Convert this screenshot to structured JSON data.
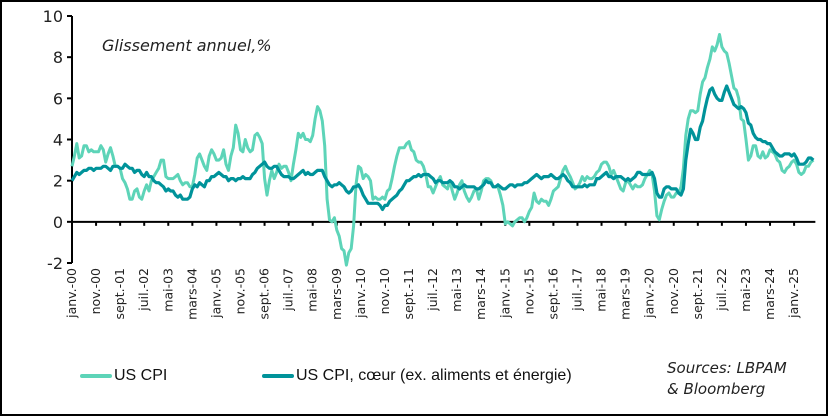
{
  "chart_data": {
    "type": "line",
    "subtitle": "Glissement annuel,%",
    "x_start": "janv.-00",
    "x_frequency": "monthly",
    "x_tick_labels": [
      "janv.-00",
      "nov.-00",
      "sept.-01",
      "juil.-02",
      "mai-03",
      "mars-04",
      "janv.-05",
      "nov.-05",
      "sept.-06",
      "juil.-07",
      "mai-08",
      "mars-09",
      "janv.-10",
      "nov.-10",
      "sept.-11",
      "juil.-12",
      "mai-13",
      "mars-14",
      "janv.-15",
      "nov.-15",
      "sept.-16",
      "juil.-17",
      "mai-18",
      "mars-19",
      "janv.-20",
      "nov.-20",
      "sept.-21",
      "juil.-22",
      "mai-23",
      "mars-24",
      "janv.-25"
    ],
    "y_ticks": [
      -2,
      0,
      2,
      4,
      6,
      8,
      10
    ],
    "ylim": [
      -2,
      10
    ],
    "grid": false,
    "legend_placement": "bottom",
    "series": [
      {
        "name": "US CPI",
        "color": "#5dd4b8",
        "values": [
          2.7,
          3.2,
          3.8,
          3.1,
          3.2,
          3.7,
          3.7,
          3.4,
          3.5,
          3.4,
          3.4,
          3.4,
          3.7,
          3.5,
          2.9,
          3.3,
          3.6,
          3.2,
          2.7,
          2.7,
          2.6,
          2.1,
          1.9,
          1.6,
          1.1,
          1.1,
          1.5,
          1.6,
          1.2,
          1.1,
          1.5,
          1.8,
          1.5,
          2.0,
          2.2,
          2.4,
          2.6,
          3.0,
          3.0,
          2.2,
          2.1,
          2.1,
          2.1,
          2.2,
          2.3,
          2.0,
          1.8,
          1.9,
          1.9,
          1.7,
          1.7,
          2.3,
          3.1,
          3.3,
          3.0,
          2.7,
          2.5,
          3.2,
          3.5,
          3.3,
          3.0,
          3.0,
          3.1,
          3.5,
          2.8,
          2.5,
          3.2,
          3.6,
          4.7,
          4.3,
          3.5,
          3.4,
          4.0,
          3.6,
          3.4,
          3.5,
          4.2,
          4.3,
          4.1,
          3.8,
          2.1,
          1.3,
          2.0,
          2.5,
          2.1,
          2.4,
          2.8,
          2.6,
          2.7,
          2.7,
          2.4,
          2.0,
          2.8,
          3.5,
          4.3,
          4.1,
          4.3,
          4.0,
          4.0,
          3.9,
          4.2,
          5.0,
          5.6,
          5.4,
          4.9,
          3.7,
          1.1,
          0.1,
          0.0,
          0.2,
          -0.4,
          -0.7,
          -1.3,
          -1.4,
          -2.1,
          -1.5,
          -1.3,
          -0.2,
          1.8,
          2.7,
          2.6,
          2.1,
          2.3,
          2.2,
          2.0,
          1.1,
          1.2,
          1.1,
          1.1,
          1.2,
          1.1,
          1.5,
          1.6,
          2.1,
          2.7,
          3.2,
          3.6,
          3.6,
          3.6,
          3.8,
          3.9,
          3.5,
          3.4,
          3.0,
          2.9,
          2.9,
          2.7,
          2.3,
          1.7,
          1.7,
          1.4,
          1.7,
          2.0,
          2.2,
          1.8,
          1.7,
          1.6,
          2.0,
          1.5,
          1.1,
          1.4,
          1.8,
          2.0,
          1.5,
          1.2,
          1.0,
          1.2,
          1.5,
          1.6,
          1.1,
          1.5,
          2.0,
          2.1,
          2.1,
          2.0,
          1.7,
          1.7,
          1.7,
          1.3,
          0.8,
          -0.1,
          0.0,
          -0.1,
          -0.2,
          0.0,
          0.1,
          0.2,
          0.2,
          0.0,
          0.2,
          0.5,
          0.7,
          1.4,
          1.0,
          0.9,
          1.1,
          1.0,
          1.0,
          0.8,
          1.1,
          1.5,
          1.6,
          1.7,
          2.1,
          2.5,
          2.7,
          2.4,
          2.2,
          1.9,
          1.6,
          1.7,
          1.9,
          2.2,
          2.0,
          2.2,
          2.1,
          2.1,
          2.2,
          2.4,
          2.5,
          2.8,
          2.9,
          2.9,
          2.7,
          2.3,
          2.5,
          2.2,
          1.9,
          1.6,
          1.5,
          1.9,
          2.0,
          1.8,
          1.6,
          1.8,
          1.7,
          1.7,
          1.8,
          2.1,
          2.3,
          2.5,
          2.3,
          1.5,
          0.3,
          0.1,
          0.6,
          1.0,
          1.3,
          1.4,
          1.2,
          1.2,
          1.4,
          1.4,
          1.7,
          2.6,
          4.2,
          5.0,
          5.4,
          5.4,
          5.3,
          5.4,
          6.2,
          6.8,
          7.0,
          7.5,
          7.9,
          8.5,
          8.3,
          8.6,
          9.1,
          8.5,
          8.3,
          8.2,
          7.7,
          7.1,
          6.5,
          6.4,
          6.0,
          5.0,
          4.9,
          4.0,
          3.0,
          3.2,
          3.7,
          3.7,
          3.2,
          3.1,
          3.4,
          3.1,
          3.2,
          3.5,
          3.4,
          3.3,
          3.0,
          2.9,
          2.5,
          2.4,
          2.6,
          2.7,
          2.9,
          3.0,
          2.8,
          2.4,
          2.3,
          2.4,
          2.7,
          2.7,
          2.9,
          3.0
        ]
      },
      {
        "name": "US CPI, cœur (ex. aliments et énergie)",
        "color": "#00939a",
        "values": [
          2.0,
          2.2,
          2.4,
          2.3,
          2.4,
          2.5,
          2.5,
          2.6,
          2.6,
          2.5,
          2.6,
          2.6,
          2.6,
          2.7,
          2.7,
          2.6,
          2.5,
          2.7,
          2.7,
          2.7,
          2.6,
          2.6,
          2.8,
          2.7,
          2.6,
          2.6,
          2.4,
          2.5,
          2.5,
          2.3,
          2.2,
          2.4,
          2.2,
          2.2,
          2.0,
          1.9,
          1.9,
          1.8,
          1.7,
          1.5,
          1.6,
          1.5,
          1.5,
          1.3,
          1.2,
          1.3,
          1.1,
          1.1,
          1.1,
          1.2,
          1.6,
          1.8,
          1.7,
          1.9,
          1.8,
          1.7,
          2.0,
          2.0,
          2.2,
          2.2,
          2.3,
          2.4,
          2.3,
          2.2,
          2.2,
          2.0,
          2.1,
          2.1,
          2.0,
          2.1,
          2.1,
          2.2,
          2.1,
          2.1,
          2.1,
          2.3,
          2.4,
          2.6,
          2.7,
          2.8,
          2.9,
          2.7,
          2.6,
          2.6,
          2.7,
          2.7,
          2.5,
          2.3,
          2.2,
          2.2,
          2.2,
          2.1,
          2.1,
          2.2,
          2.3,
          2.4,
          2.5,
          2.3,
          2.4,
          2.3,
          2.3,
          2.4,
          2.5,
          2.5,
          2.5,
          2.2,
          2.0,
          1.8,
          1.7,
          1.8,
          1.8,
          1.9,
          1.8,
          1.7,
          1.5,
          1.4,
          1.5,
          1.7,
          1.7,
          1.8,
          1.6,
          1.3,
          1.1,
          0.9,
          0.9,
          0.9,
          0.9,
          0.9,
          0.8,
          0.6,
          0.8,
          0.8,
          1.0,
          1.1,
          1.2,
          1.3,
          1.5,
          1.6,
          1.8,
          2.0,
          2.0,
          2.1,
          2.2,
          2.2,
          2.3,
          2.2,
          2.3,
          2.3,
          2.3,
          2.2,
          2.1,
          1.9,
          2.0,
          2.0,
          1.9,
          1.9,
          1.9,
          2.0,
          1.9,
          1.7,
          1.7,
          1.6,
          1.7,
          1.8,
          1.7,
          1.7,
          1.7,
          1.7,
          1.6,
          1.6,
          1.7,
          1.8,
          2.0,
          1.9,
          1.9,
          1.7,
          1.7,
          1.8,
          1.7,
          1.6,
          1.6,
          1.7,
          1.8,
          1.8,
          1.7,
          1.8,
          1.8,
          1.8,
          1.9,
          1.9,
          2.0,
          2.1,
          2.2,
          2.3,
          2.2,
          2.1,
          2.2,
          2.2,
          2.2,
          2.3,
          2.2,
          2.1,
          2.1,
          2.2,
          2.3,
          2.2,
          2.0,
          1.9,
          1.7,
          1.7,
          1.7,
          1.7,
          1.7,
          1.8,
          1.7,
          1.8,
          1.8,
          1.8,
          2.1,
          2.1,
          2.2,
          2.3,
          2.4,
          2.2,
          2.2,
          2.1,
          2.2,
          2.2,
          2.2,
          2.1,
          2.0,
          2.1,
          2.0,
          2.1,
          2.2,
          2.4,
          2.4,
          2.3,
          2.3,
          2.3,
          2.3,
          2.4,
          2.1,
          1.4,
          1.2,
          1.2,
          1.6,
          1.7,
          1.7,
          1.6,
          1.6,
          1.6,
          1.4,
          1.3,
          1.6,
          3.0,
          3.8,
          4.5,
          4.3,
          4.0,
          4.0,
          4.6,
          4.9,
          5.5,
          6.0,
          6.4,
          6.5,
          6.2,
          6.0,
          5.9,
          5.9,
          6.3,
          6.6,
          6.3,
          6.0,
          5.7,
          5.6,
          5.5,
          5.6,
          5.5,
          5.3,
          4.8,
          4.7,
          4.3,
          4.1,
          4.0,
          4.0,
          3.9,
          3.9,
          3.8,
          3.8,
          3.6,
          3.4,
          3.3,
          3.2,
          3.2,
          3.3,
          3.3,
          3.3,
          3.2,
          3.3,
          3.1,
          2.8,
          2.8,
          2.8,
          2.9,
          3.1,
          3.1,
          3.0
        ]
      }
    ]
  },
  "legend": {
    "items": [
      "US CPI",
      "US CPI, cœur (ex. aliments et énergie)"
    ]
  },
  "source": {
    "line1": "Sources: LBPAM",
    "line2": "& Bloomberg"
  }
}
